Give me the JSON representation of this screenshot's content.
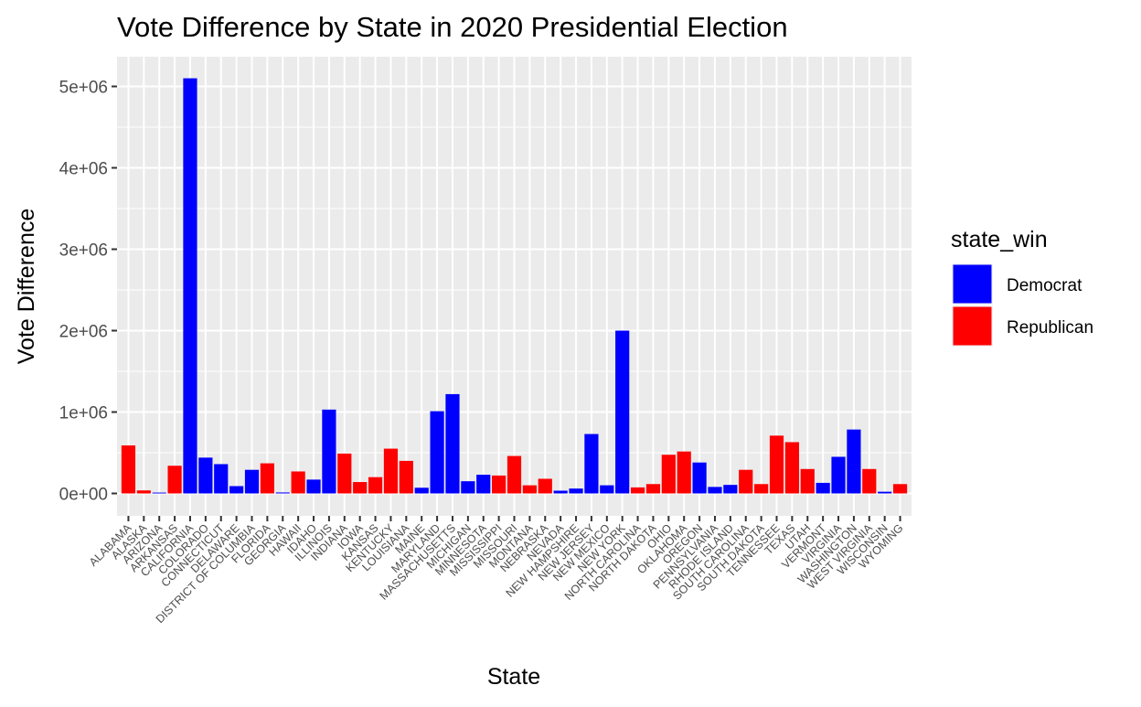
{
  "chart_data": {
    "type": "bar",
    "title": "Vote Difference by State in 2020 Presidential Election",
    "xlabel": "State",
    "ylabel": "Vote Difference",
    "ylim": [
      0,
      5300000
    ],
    "yticks": [
      {
        "value": 0,
        "label": "0e+00"
      },
      {
        "value": 1000000,
        "label": "1e+06"
      },
      {
        "value": 2000000,
        "label": "2e+06"
      },
      {
        "value": 3000000,
        "label": "3e+06"
      },
      {
        "value": 4000000,
        "label": "4e+06"
      },
      {
        "value": 5000000,
        "label": "5e+06"
      }
    ],
    "grid": true,
    "legend": {
      "title": "state_win",
      "position": "right",
      "entries": [
        {
          "key": "D",
          "label": "Democrat",
          "color": "#0000ff"
        },
        {
          "key": "R",
          "label": "Republican",
          "color": "#ff0000"
        }
      ]
    },
    "categories": [
      "ALABAMA",
      "ALASKA",
      "ARIZONA",
      "ARKANSAS",
      "CALIFORNIA",
      "COLORADO",
      "CONNECTICUT",
      "DELAWARE",
      "DISTRICT OF COLUMBIA",
      "FLORIDA",
      "GEORGIA",
      "HAWAII",
      "IDAHO",
      "ILLINOIS",
      "INDIANA",
      "IOWA",
      "KANSAS",
      "KENTUCKY",
      "LOUISIANA",
      "MAINE",
      "MARYLAND",
      "MASSACHUSETTS",
      "MICHIGAN",
      "MINNESOTA",
      "MISSISSIPPI",
      "MISSOURI",
      "MONTANA",
      "NEBRASKA",
      "NEVADA",
      "NEW HAMPSHIRE",
      "NEW JERSEY",
      "NEW MEXICO",
      "NEW YORK",
      "NORTH CAROLINA",
      "NORTH DAKOTA",
      "OHIO",
      "OKLAHOMA",
      "OREGON",
      "PENNSYLVANIA",
      "RHODE ISLAND",
      "SOUTH CAROLINA",
      "SOUTH DAKOTA",
      "TENNESSEE",
      "TEXAS",
      "UTAH",
      "VERMONT",
      "VIRGINIA",
      "WASHINGTON",
      "WEST VIRGINIA",
      "WISCONSIN",
      "WYOMING"
    ],
    "values": [
      590000,
      37000,
      10500,
      340000,
      5100000,
      440000,
      360000,
      90000,
      290000,
      370000,
      12000,
      270000,
      170000,
      1030000,
      490000,
      140000,
      200000,
      550000,
      400000,
      70000,
      1010000,
      1220000,
      150000,
      230000,
      220000,
      460000,
      100000,
      180000,
      34000,
      60000,
      730000,
      100000,
      2000000,
      74000,
      115000,
      475000,
      515000,
      380000,
      80000,
      105000,
      290000,
      115000,
      710000,
      630000,
      300000,
      130000,
      450000,
      785000,
      300000,
      21000,
      115000
    ],
    "winner": [
      "R",
      "R",
      "D",
      "R",
      "D",
      "D",
      "D",
      "D",
      "D",
      "R",
      "D",
      "R",
      "D",
      "D",
      "R",
      "R",
      "R",
      "R",
      "R",
      "D",
      "D",
      "D",
      "D",
      "D",
      "R",
      "R",
      "R",
      "R",
      "D",
      "D",
      "D",
      "D",
      "D",
      "R",
      "R",
      "R",
      "R",
      "D",
      "D",
      "D",
      "R",
      "R",
      "R",
      "R",
      "R",
      "D",
      "D",
      "D",
      "R",
      "D",
      "R"
    ]
  }
}
